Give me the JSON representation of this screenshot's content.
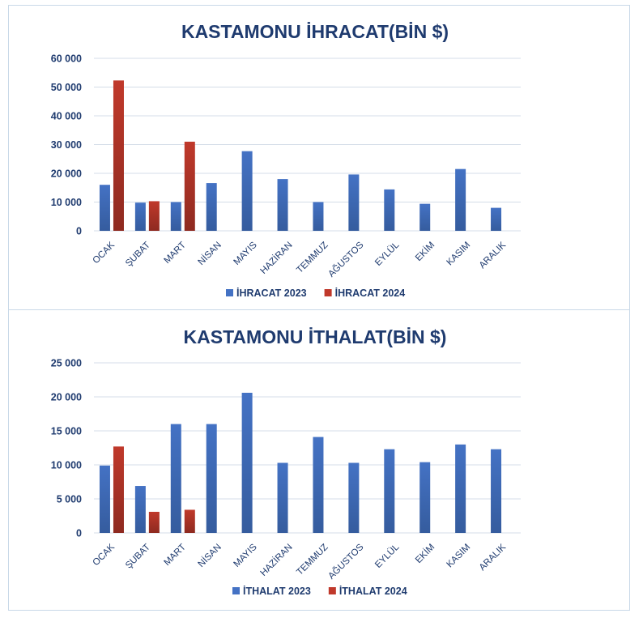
{
  "colors": {
    "series_2023": "#4472C4",
    "series_2024": "#C0392B"
  },
  "chart_data": [
    {
      "type": "bar",
      "title": "KASTAMONU İHRACAT(BİN $)",
      "categories": [
        "OCAK",
        "ŞUBAT",
        "MART",
        "NİSAN",
        "MAYIS",
        "HAZİRAN",
        "TEMMUZ",
        "AĞUSTOS",
        "EYLÜL",
        "EKİM",
        "KASIM",
        "ARALIK"
      ],
      "series": [
        {
          "name": "İHRACAT 2023",
          "values": [
            16000,
            9800,
            10000,
            16600,
            27700,
            18000,
            10000,
            19600,
            14400,
            9400,
            21500,
            8000
          ]
        },
        {
          "name": "İHRACAT 2024",
          "values": [
            52300,
            10300,
            31000,
            null,
            null,
            null,
            null,
            null,
            null,
            null,
            null,
            null
          ]
        }
      ],
      "ylim": [
        0,
        60000
      ],
      "yticks": [
        "0",
        "10 000",
        "20 000",
        "30 000",
        "40 000",
        "50 000",
        "60 000"
      ],
      "ytick_values": [
        0,
        10000,
        20000,
        30000,
        40000,
        50000,
        60000
      ],
      "grid": true,
      "legend": "bottom"
    },
    {
      "type": "bar",
      "title": "KASTAMONU İTHALAT(BİN $)",
      "categories": [
        "OCAK",
        "ŞUBAT",
        "MART",
        "NİSAN",
        "MAYIS",
        "HAZİRAN",
        "TEMMUZ",
        "AĞUSTOS",
        "EYLÜL",
        "EKİM",
        "KASIM",
        "ARALIK"
      ],
      "series": [
        {
          "name": "İTHALAT 2023",
          "values": [
            9900,
            6900,
            16000,
            16000,
            20600,
            10300,
            14100,
            10300,
            12300,
            10400,
            13000,
            12300
          ]
        },
        {
          "name": "İTHALAT 2024",
          "values": [
            12700,
            3100,
            3400,
            null,
            null,
            null,
            null,
            null,
            null,
            null,
            null,
            null
          ]
        }
      ],
      "ylim": [
        0,
        25000
      ],
      "yticks": [
        "0",
        "5 000",
        "10 000",
        "15 000",
        "20 000",
        "25 000"
      ],
      "ytick_values": [
        0,
        5000,
        10000,
        15000,
        20000,
        25000
      ],
      "grid": true,
      "legend": "bottom"
    }
  ]
}
